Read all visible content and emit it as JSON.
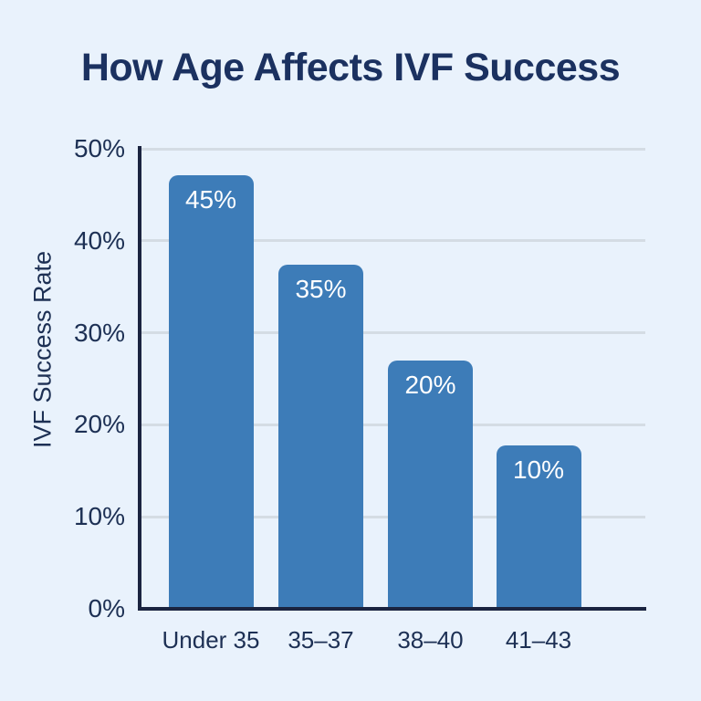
{
  "chart_data": {
    "type": "bar",
    "title": "How Age Affects IVF Success",
    "xlabel": "",
    "ylabel": "IVF Success Rate",
    "categories": [
      "Under 35",
      "35–37",
      "38–40",
      "41–43"
    ],
    "values": [
      45,
      35,
      20,
      10
    ],
    "bar_labels": [
      "45%",
      "35%",
      "20%",
      "10%"
    ],
    "drawn_bar_heights_pct": [
      47.1,
      37.4,
      27.0,
      17.8
    ],
    "ylim": [
      0,
      50
    ],
    "yticks": [
      {
        "value": 0,
        "label": "0%"
      },
      {
        "value": 10,
        "label": "10%"
      },
      {
        "value": 20,
        "label": "20%"
      },
      {
        "value": 30,
        "label": "30%"
      },
      {
        "value": 40,
        "label": "40%"
      },
      {
        "value": 50,
        "label": "50%"
      }
    ],
    "grid": "horizontal",
    "legend": "none",
    "colors": {
      "background": "#e9f2fc",
      "bar": "#3d7cb8",
      "bar_label": "#ffffff",
      "grid": "#d4dce4",
      "axis": "#1b2440",
      "text": "#1d3054",
      "text_title": "#1b3160"
    }
  }
}
